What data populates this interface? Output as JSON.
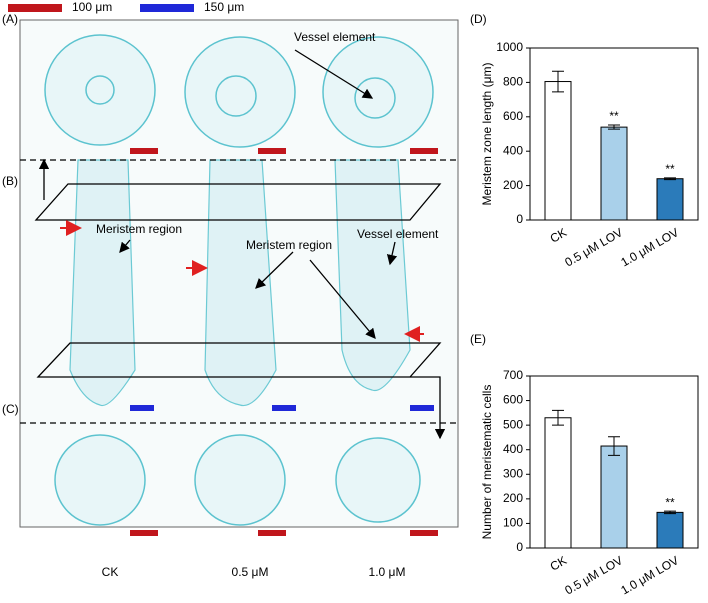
{
  "figure": {
    "scale_legend": [
      "100 μm",
      "150 μm"
    ],
    "panel_labels": [
      "(A)",
      "(B)",
      "(C)"
    ],
    "annotations": [
      "Vessel element",
      "Meristem region",
      "Meristem region",
      "Vessel element"
    ],
    "columns": [
      "CK",
      "0.5 μM",
      "1.0 μM"
    ]
  },
  "chart_data": [
    {
      "type": "bar",
      "panel": "(D)",
      "ylabel": "Meristem zone length (μm)",
      "categories": [
        "CK",
        "0.5 μM LOV",
        "1.0 μM LOV"
      ],
      "values": [
        805,
        540,
        240
      ],
      "errors": [
        60,
        12,
        5
      ],
      "significance": [
        null,
        "**",
        "**"
      ],
      "colors": [
        "#ffffff",
        "#a9d0ea",
        "#2b7bba"
      ],
      "ylim": [
        0,
        1000
      ],
      "yticks": [
        0,
        200,
        400,
        600,
        800,
        1000
      ]
    },
    {
      "type": "bar",
      "panel": "(E)",
      "ylabel": "Number of meristematic cells",
      "categories": [
        "CK",
        "0.5 μM LOV",
        "1.0 μM LOV"
      ],
      "values": [
        530,
        415,
        145
      ],
      "errors": [
        30,
        38,
        5
      ],
      "significance": [
        null,
        null,
        "**"
      ],
      "colors": [
        "#ffffff",
        "#a9d0ea",
        "#2b7bba"
      ],
      "ylim": [
        0,
        700
      ],
      "yticks": [
        0,
        100,
        200,
        300,
        400,
        500,
        600,
        700
      ]
    }
  ]
}
